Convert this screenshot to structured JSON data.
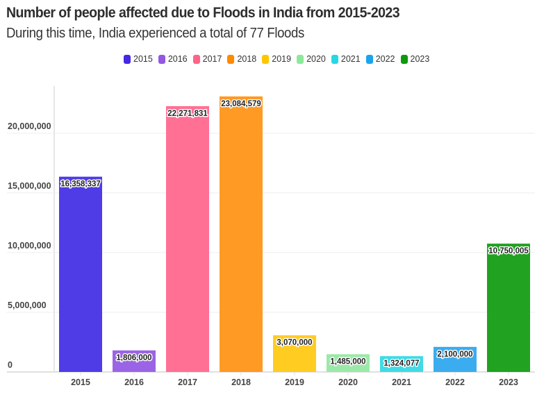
{
  "header": {
    "title": "Number of people affected due to Floods in India from 2015-2023",
    "subtitle": "During this time, India experienced a total of 77 Floods"
  },
  "chart_data": {
    "type": "bar",
    "title": "Number of people affected due to Floods in India from 2015-2023",
    "subtitle": "During this time, India experienced a total of 77 Floods",
    "xlabel": "",
    "ylabel": "",
    "categories": [
      "2015",
      "2016",
      "2017",
      "2018",
      "2019",
      "2020",
      "2021",
      "2022",
      "2023"
    ],
    "values": [
      16358337,
      1806000,
      22271831,
      23084579,
      3070000,
      1485000,
      1324077,
      2100000,
      10750005
    ],
    "value_labels": [
      "16,358,337",
      "1,806,000",
      "22,271,831",
      "23,084,579",
      "3,070,000",
      "1,485,000",
      "1,324,077",
      "2,100,000",
      "10,750,005"
    ],
    "colors": [
      "#4f3ce6",
      "#9b64e6",
      "#ff7094",
      "#ff9a24",
      "#ffcc22",
      "#9be9a8",
      "#40dbe6",
      "#3bacef",
      "#21a221"
    ],
    "legend_colors": [
      "#4428e3",
      "#9458e3",
      "#ff6388",
      "#ff8a00",
      "#ffc600",
      "#8ce89a",
      "#27d8e3",
      "#1aa4ee",
      "#0e9a0e"
    ],
    "legend": [
      "2015",
      "2016",
      "2017",
      "2018",
      "2019",
      "2020",
      "2021",
      "2022",
      "2023"
    ],
    "legend_position": "top-center",
    "yticks": [
      0,
      5000000,
      10000000,
      15000000,
      20000000
    ],
    "ytick_labels": [
      "0",
      "5,000,000",
      "10,000,000",
      "15,000,000",
      "20,000,000"
    ],
    "ylim": [
      0,
      24000000
    ],
    "grid": true
  }
}
